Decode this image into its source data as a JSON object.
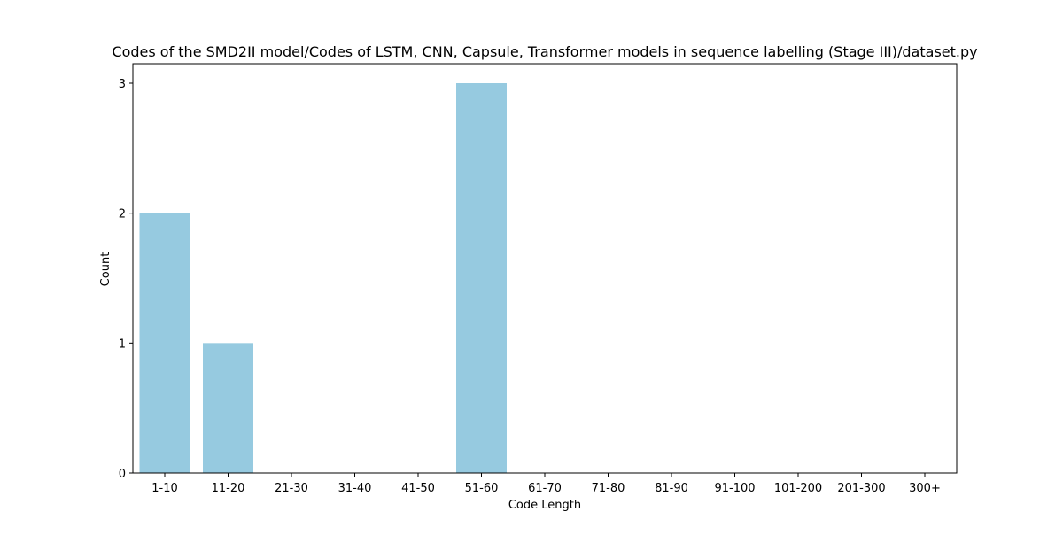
{
  "chart_data": {
    "type": "bar",
    "title": "Codes of the SMD2II model/Codes of LSTM, CNN, Capsule, Transformer models in sequence labelling (Stage III)/dataset.py",
    "xlabel": "Code Length",
    "ylabel": "Count",
    "categories": [
      "1-10",
      "11-20",
      "21-30",
      "31-40",
      "41-50",
      "51-60",
      "61-70",
      "71-80",
      "81-90",
      "91-100",
      "101-200",
      "201-300",
      "300+"
    ],
    "values": [
      2,
      1,
      0,
      0,
      0,
      3,
      0,
      0,
      0,
      0,
      0,
      0,
      0
    ],
    "ylim": [
      0,
      3.15
    ],
    "yticks": [
      0,
      1,
      2,
      3
    ],
    "grid": false,
    "legend": false,
    "colors": {
      "bar": "#96cae0",
      "axis": "#000000",
      "background": "#ffffff"
    }
  }
}
